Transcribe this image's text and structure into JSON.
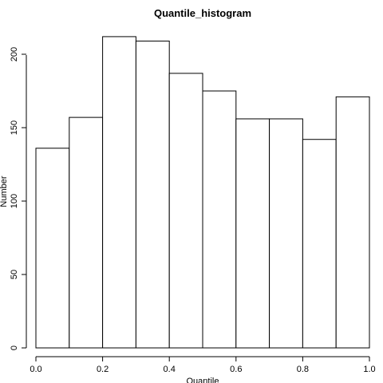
{
  "chart_data": {
    "type": "bar",
    "title": "Quantile_histogram",
    "xlabel": "Quantile",
    "ylabel": "Number",
    "bins": [
      {
        "from": 0.0,
        "to": 0.1,
        "count": 136
      },
      {
        "from": 0.1,
        "to": 0.2,
        "count": 157
      },
      {
        "from": 0.2,
        "to": 0.3,
        "count": 212
      },
      {
        "from": 0.3,
        "to": 0.4,
        "count": 209
      },
      {
        "from": 0.4,
        "to": 0.5,
        "count": 187
      },
      {
        "from": 0.5,
        "to": 0.6,
        "count": 175
      },
      {
        "from": 0.6,
        "to": 0.7,
        "count": 156
      },
      {
        "from": 0.7,
        "to": 0.8,
        "count": 156
      },
      {
        "from": 0.8,
        "to": 0.9,
        "count": 142
      },
      {
        "from": 0.9,
        "to": 1.0,
        "count": 171
      }
    ],
    "x_ticks": [
      "0.0",
      "0.2",
      "0.4",
      "0.6",
      "0.8",
      "1.0"
    ],
    "x_tick_values": [
      0.0,
      0.2,
      0.4,
      0.6,
      0.8,
      1.0
    ],
    "y_ticks": [
      "0",
      "50",
      "100",
      "150",
      "200"
    ],
    "y_tick_values": [
      0,
      50,
      100,
      150,
      200
    ],
    "xlim": [
      0.0,
      1.0
    ],
    "ylim": [
      0,
      212
    ],
    "grid": false,
    "legend": "none",
    "colors": {
      "bar_fill": "#ffffff",
      "bar_stroke": "#000000",
      "axis": "#000000",
      "background": "#ffffff"
    }
  }
}
